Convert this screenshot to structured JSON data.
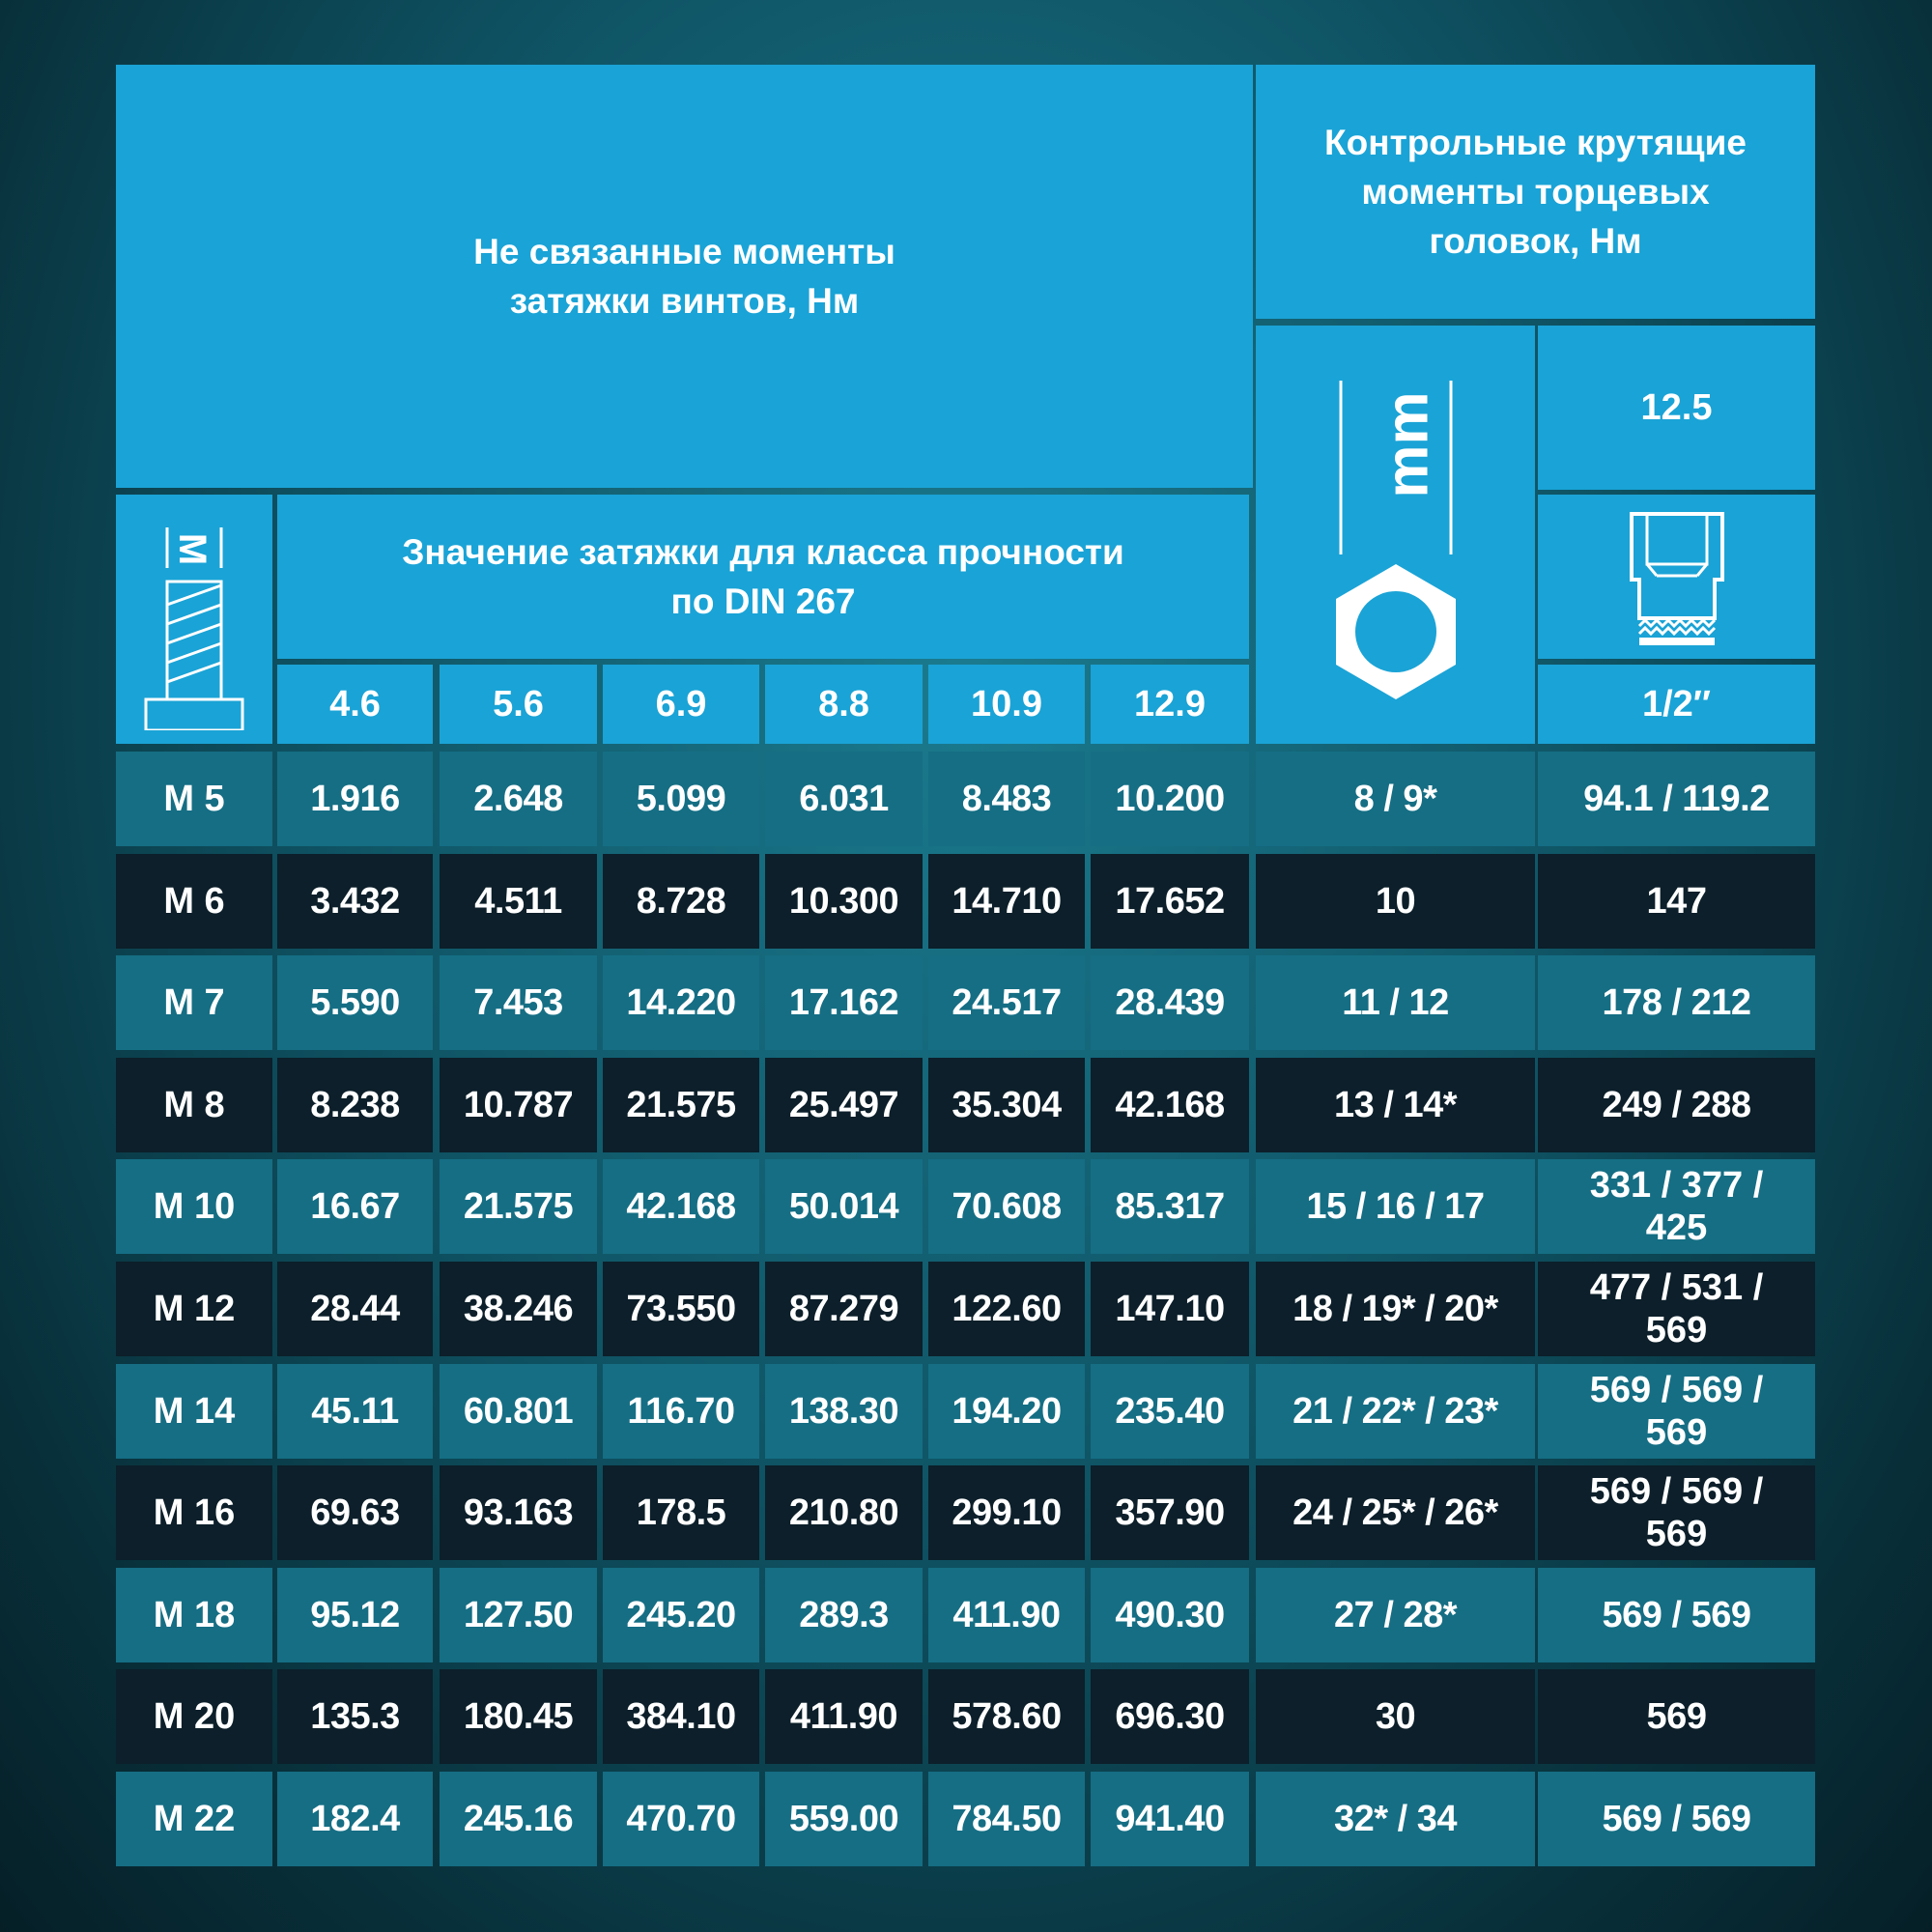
{
  "header": {
    "title_left": "Не связанные моменты затяжки винтов, Нм",
    "title_right": "Контрольные крутящие моменты торцевых головок, Нм",
    "subtitle": "Значение затяжки для класса прочности по DIN 267",
    "bolt_symbol": "M",
    "unit_label": "mm",
    "drive_size": "12.5",
    "drive_label": "1/2″"
  },
  "icons": {
    "bolt": "bolt-icon",
    "hex": "hex-nut-icon",
    "socket": "socket-icon"
  },
  "grades": [
    "4.6",
    "5.6",
    "6.9",
    "8.8",
    "10.9",
    "12.9"
  ],
  "rows": [
    {
      "label": "M 5",
      "values": [
        "1.916",
        "2.648",
        "5.099",
        "6.031",
        "8.483",
        "10.200"
      ],
      "mm": "8 / 9*",
      "torque": "94.1 / 119.2"
    },
    {
      "label": "M 6",
      "values": [
        "3.432",
        "4.511",
        "8.728",
        "10.300",
        "14.710",
        "17.652"
      ],
      "mm": "10",
      "torque": "147"
    },
    {
      "label": "M 7",
      "values": [
        "5.590",
        "7.453",
        "14.220",
        "17.162",
        "24.517",
        "28.439"
      ],
      "mm": "11 / 12",
      "torque": "178 / 212"
    },
    {
      "label": "M 8",
      "values": [
        "8.238",
        "10.787",
        "21.575",
        "25.497",
        "35.304",
        "42.168"
      ],
      "mm": "13 / 14*",
      "torque": "249 / 288"
    },
    {
      "label": "M 10",
      "values": [
        "16.67",
        "21.575",
        "42.168",
        "50.014",
        "70.608",
        "85.317"
      ],
      "mm": "15 / 16 / 17",
      "torque": "331 / 377 / 425"
    },
    {
      "label": "M 12",
      "values": [
        "28.44",
        "38.246",
        "73.550",
        "87.279",
        "122.60",
        "147.10"
      ],
      "mm": "18 / 19* / 20*",
      "torque": "477 / 531 / 569"
    },
    {
      "label": "M 14",
      "values": [
        "45.11",
        "60.801",
        "116.70",
        "138.30",
        "194.20",
        "235.40"
      ],
      "mm": "21 / 22* / 23*",
      "torque": "569 / 569 / 569"
    },
    {
      "label": "M 16",
      "values": [
        "69.63",
        "93.163",
        "178.5",
        "210.80",
        "299.10",
        "357.90"
      ],
      "mm": "24 / 25* / 26*",
      "torque": "569 / 569 / 569"
    },
    {
      "label": "M 18",
      "values": [
        "95.12",
        "127.50",
        "245.20",
        "289.3",
        "411.90",
        "490.30"
      ],
      "mm": "27 / 28*",
      "torque": "569 / 569"
    },
    {
      "label": "M 20",
      "values": [
        "135.3",
        "180.45",
        "384.10",
        "411.90",
        "578.60",
        "696.30"
      ],
      "mm": "30",
      "torque": "569"
    },
    {
      "label": "M 22",
      "values": [
        "182.4",
        "245.16",
        "470.70",
        "559.00",
        "784.50",
        "941.40"
      ],
      "mm": "32* / 34",
      "torque": "569 / 569"
    }
  ],
  "colors": {
    "header": "#1aa3d6",
    "row_teal": "#156e84",
    "row_dark": "#0c1f2a",
    "text": "#ffffff"
  }
}
